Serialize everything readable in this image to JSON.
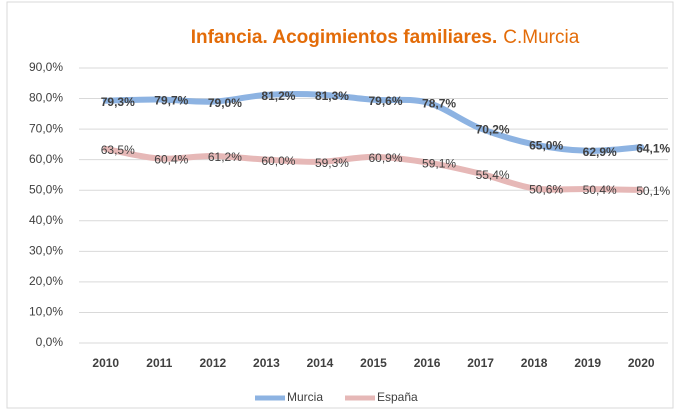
{
  "chart_data": {
    "type": "line",
    "title": "Infancia. Acogimientos familiares.",
    "subtitle": "C.Murcia",
    "categories": [
      "2010",
      "2011",
      "2012",
      "2013",
      "2014",
      "2015",
      "2016",
      "2017",
      "2018",
      "2019",
      "2020"
    ],
    "series": [
      {
        "name": "Murcia",
        "color": "#8db3e2",
        "values": [
          79.3,
          79.7,
          79.0,
          81.2,
          81.3,
          79.6,
          78.7,
          70.2,
          65.0,
          62.9,
          64.1
        ],
        "value_labels": [
          "79,3%",
          "79,7%",
          "79,0%",
          "81,2%",
          "81,3%",
          "79,6%",
          "78,7%",
          "70,2%",
          "65,0%",
          "62,9%",
          "64,1%"
        ]
      },
      {
        "name": "España",
        "color": "#e6b8b7",
        "values": [
          63.5,
          60.4,
          61.2,
          60.0,
          59.3,
          60.9,
          59.1,
          55.4,
          50.6,
          50.4,
          50.1
        ],
        "value_labels": [
          "63,5%",
          "60,4%",
          "61,2%",
          "60,0%",
          "59,3%",
          "60,9%",
          "59,1%",
          "55,4%",
          "50,6%",
          "50,4%",
          "50,1%"
        ]
      }
    ],
    "ylim": [
      0,
      90
    ],
    "yticks": [
      {
        "value": 0,
        "label": "0,0%"
      },
      {
        "value": 10,
        "label": "10,0%"
      },
      {
        "value": 20,
        "label": "20,0%"
      },
      {
        "value": 30,
        "label": "30,0%"
      },
      {
        "value": 40,
        "label": "40,0%"
      },
      {
        "value": 50,
        "label": "50,0%"
      },
      {
        "value": 60,
        "label": "60,0%"
      },
      {
        "value": 70,
        "label": "70,0%"
      },
      {
        "value": 80,
        "label": "80,0%"
      },
      {
        "value": 90,
        "label": "90,0%"
      }
    ],
    "grid": true,
    "legend": "bottom"
  }
}
